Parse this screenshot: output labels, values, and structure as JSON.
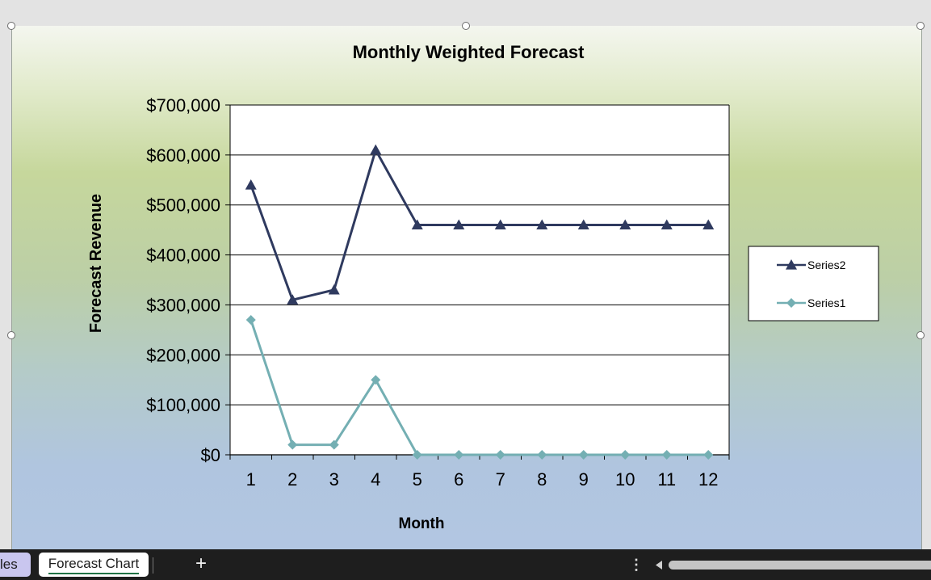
{
  "chart_data": {
    "type": "line",
    "title": "Monthly Weighted Forecast",
    "xlabel": "Month",
    "ylabel": "Forecast Revenue",
    "categories": [
      "1",
      "2",
      "3",
      "4",
      "5",
      "6",
      "7",
      "8",
      "9",
      "10",
      "11",
      "12"
    ],
    "yticks": [
      "$0",
      "$100,000",
      "$200,000",
      "$300,000",
      "$400,000",
      "$500,000",
      "$600,000",
      "$700,000"
    ],
    "ylim": [
      0,
      700000
    ],
    "grid": true,
    "legend_position": "right",
    "series": [
      {
        "name": "Series2",
        "color": "#2f3a5f",
        "marker": "triangle",
        "values": [
          540000,
          310000,
          330000,
          610000,
          460000,
          460000,
          460000,
          460000,
          460000,
          460000,
          460000,
          460000
        ]
      },
      {
        "name": "Series1",
        "color": "#74afb3",
        "marker": "diamond",
        "values": [
          270000,
          20000,
          20000,
          150000,
          0,
          0,
          0,
          0,
          0,
          0,
          0,
          0
        ]
      }
    ]
  },
  "sheet_tabs": {
    "previous_tab_label": "les",
    "active_tab_label": "Forecast Chart",
    "add_sheet_label": "+",
    "menu_label": "⋮"
  },
  "icons": {
    "add_sheet": "plus-icon",
    "tab_menu": "vertical-ellipsis-icon",
    "scroll_left": "triangle-left-icon"
  }
}
